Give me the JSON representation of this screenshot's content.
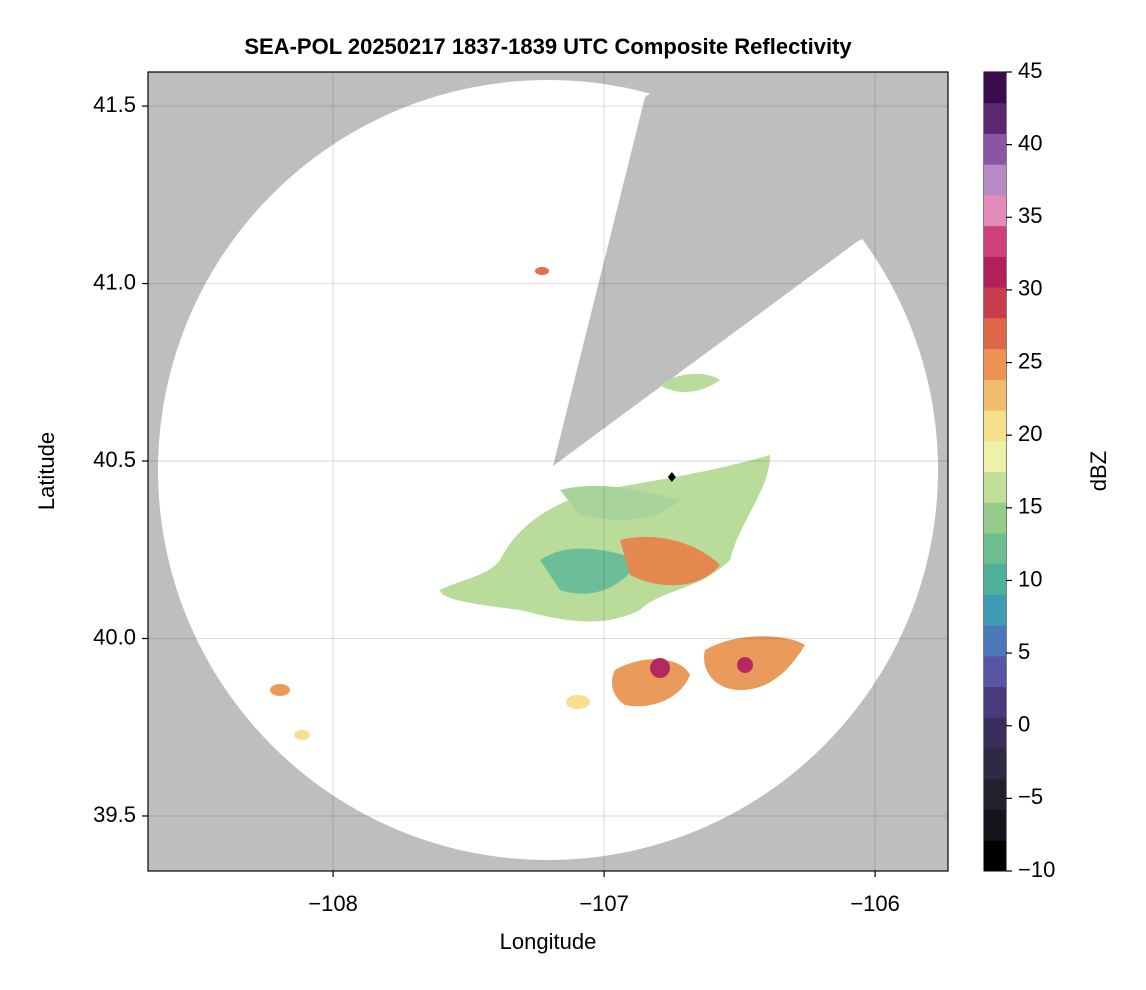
{
  "chart_data": {
    "type": "map",
    "title": "SEA-POL 20250217 1837-1839 UTC Composite Reflectivity",
    "xlabel": "Longitude",
    "ylabel": "Latitude",
    "xlim": [
      -108.683,
      -105.731
    ],
    "ylim": [
      39.345,
      41.596
    ],
    "xticks": [
      {
        "value": -108,
        "label": "−108"
      },
      {
        "value": -107,
        "label": "−107"
      },
      {
        "value": -106,
        "label": "−106"
      }
    ],
    "yticks": [
      39.5,
      {
        "value": 40,
        "label": "40.0"
      },
      40.5,
      {
        "value": 41,
        "label": "41.0"
      },
      41.5
    ],
    "grid": true,
    "background_color": "#bebebe",
    "points": [
      {
        "x": -106.75,
        "y": 40.455
      }
    ],
    "colorbar": {
      "label": "dBZ",
      "clim": [
        -10,
        45
      ],
      "ticks": [
        {
          "value": -10,
          "label": "−10"
        },
        {
          "value": -5,
          "label": "−5"
        },
        0,
        5,
        10,
        15,
        20,
        25,
        30,
        35,
        40,
        45
      ],
      "colormap": [
        "#000000",
        "#15131c",
        "#242030",
        "#2f2944",
        "#3a2f5c",
        "#483a7c",
        "#5a54a4",
        "#4a78b8",
        "#3f9cb4",
        "#4fb09c",
        "#6cbe90",
        "#95cc8c",
        "#c3e09a",
        "#eef2a8",
        "#f6e08e",
        "#f2bc6e",
        "#ec9252",
        "#e0684a",
        "#c83c4c",
        "#b41e5a",
        "#d0407e",
        "#e28ab8",
        "#b88ac4",
        "#8a56a4",
        "#5c2870",
        "#3a0c4c"
      ]
    }
  }
}
